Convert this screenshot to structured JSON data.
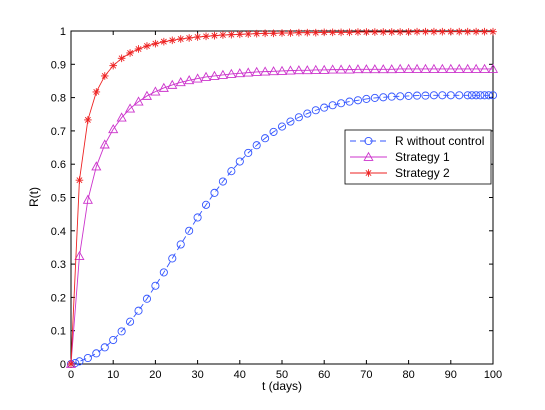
{
  "chart_data": {
    "type": "line",
    "xlabel": "t (days)",
    "ylabel": "R(t)",
    "xlim": [
      0,
      100
    ],
    "ylim": [
      0,
      1
    ],
    "xticks": [
      0,
      10,
      20,
      30,
      40,
      50,
      60,
      70,
      80,
      90,
      100
    ],
    "yticks": [
      0,
      0.1,
      0.2,
      0.3,
      0.4,
      0.5,
      0.6,
      0.7,
      0.8,
      0.9,
      1
    ],
    "grid": false,
    "legend_position": "right",
    "series": [
      {
        "name": "R without control",
        "color": "#3355ff",
        "linestyle": "dashed",
        "marker": "circle",
        "x": [
          0,
          1,
          2,
          4,
          6,
          8,
          10,
          12,
          14,
          16,
          18,
          20,
          22,
          24,
          26,
          28,
          30,
          32,
          34,
          36,
          38,
          40,
          42,
          44,
          46,
          48,
          50,
          52,
          54,
          56,
          58,
          60,
          62,
          64,
          66,
          68,
          70,
          72,
          74,
          76,
          78,
          80,
          82,
          84,
          86,
          88,
          90,
          92,
          94,
          95,
          96,
          97,
          98,
          99,
          100
        ],
        "y": [
          0,
          0.003,
          0.008,
          0.018,
          0.032,
          0.05,
          0.072,
          0.098,
          0.127,
          0.16,
          0.196,
          0.235,
          0.275,
          0.317,
          0.359,
          0.4,
          0.44,
          0.478,
          0.514,
          0.548,
          0.579,
          0.608,
          0.634,
          0.657,
          0.678,
          0.697,
          0.713,
          0.728,
          0.741,
          0.752,
          0.762,
          0.77,
          0.777,
          0.783,
          0.788,
          0.792,
          0.796,
          0.799,
          0.801,
          0.803,
          0.804,
          0.805,
          0.806,
          0.806,
          0.807,
          0.807,
          0.807,
          0.807,
          0.807,
          0.807,
          0.807,
          0.807,
          0.807,
          0.807,
          0.807
        ]
      },
      {
        "name": "Strategy 1",
        "color": "#cc33cc",
        "linestyle": "solid",
        "marker": "triangle",
        "x": [
          0,
          2,
          4,
          6,
          8,
          10,
          12,
          14,
          16,
          18,
          20,
          22,
          24,
          26,
          28,
          30,
          32,
          34,
          36,
          38,
          40,
          42,
          44,
          46,
          48,
          50,
          52,
          54,
          56,
          58,
          60,
          62,
          64,
          66,
          68,
          70,
          72,
          74,
          76,
          78,
          80,
          82,
          84,
          86,
          88,
          90,
          92,
          94,
          96,
          98,
          100
        ],
        "y": [
          0,
          0.324,
          0.493,
          0.593,
          0.659,
          0.705,
          0.74,
          0.767,
          0.788,
          0.805,
          0.818,
          0.829,
          0.838,
          0.846,
          0.852,
          0.857,
          0.862,
          0.865,
          0.868,
          0.871,
          0.873,
          0.875,
          0.877,
          0.878,
          0.879,
          0.88,
          0.881,
          0.882,
          0.882,
          0.883,
          0.883,
          0.884,
          0.884,
          0.884,
          0.885,
          0.885,
          0.885,
          0.885,
          0.885,
          0.886,
          0.886,
          0.886,
          0.886,
          0.886,
          0.886,
          0.886,
          0.886,
          0.886,
          0.886,
          0.886,
          0.886
        ]
      },
      {
        "name": "Strategy 2",
        "color": "#ee2222",
        "linestyle": "solid",
        "marker": "star",
        "x": [
          0,
          2,
          4,
          6,
          8,
          10,
          12,
          14,
          16,
          18,
          20,
          22,
          24,
          26,
          28,
          30,
          32,
          34,
          36,
          38,
          40,
          42,
          44,
          46,
          48,
          50,
          52,
          54,
          56,
          58,
          60,
          62,
          64,
          66,
          68,
          70,
          72,
          74,
          76,
          78,
          80,
          82,
          84,
          86,
          88,
          90,
          92,
          94,
          96,
          98,
          100
        ],
        "y": [
          0,
          0.552,
          0.733,
          0.817,
          0.865,
          0.896,
          0.918,
          0.934,
          0.946,
          0.955,
          0.962,
          0.968,
          0.972,
          0.976,
          0.979,
          0.982,
          0.984,
          0.986,
          0.988,
          0.989,
          0.99,
          0.991,
          0.992,
          0.993,
          0.993,
          0.994,
          0.994,
          0.995,
          0.995,
          0.995,
          0.996,
          0.996,
          0.996,
          0.996,
          0.997,
          0.997,
          0.997,
          0.997,
          0.997,
          0.997,
          0.997,
          0.998,
          0.998,
          0.998,
          0.998,
          0.998,
          0.998,
          0.998,
          0.998,
          0.998,
          0.998
        ]
      }
    ]
  }
}
